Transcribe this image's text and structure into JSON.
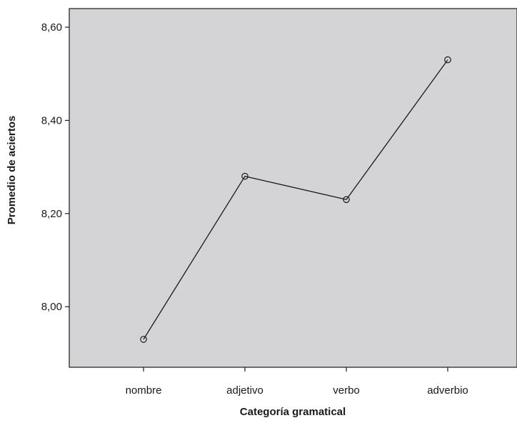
{
  "chart_data": {
    "type": "line",
    "title": "",
    "xlabel": "Categoría gramatical",
    "ylabel": "Promedio de aciertos",
    "categories": [
      "nombre",
      "adjetivo",
      "verbo",
      "adverbio"
    ],
    "series": [
      {
        "values": [
          7.93,
          8.28,
          8.23,
          8.53
        ]
      }
    ],
    "ylim": [
      7.87,
      8.64
    ],
    "yticks": [
      8.0,
      8.2,
      8.4,
      8.6
    ],
    "ytick_labels": [
      "8,00",
      "8,20",
      "8,40",
      "8,60"
    ],
    "grid": false,
    "legend": "none",
    "marker": "open-circle",
    "colors": {
      "plot_background": "#d4d4d6",
      "line": "#1a1a1a",
      "axis": "#1a1a1a"
    }
  }
}
